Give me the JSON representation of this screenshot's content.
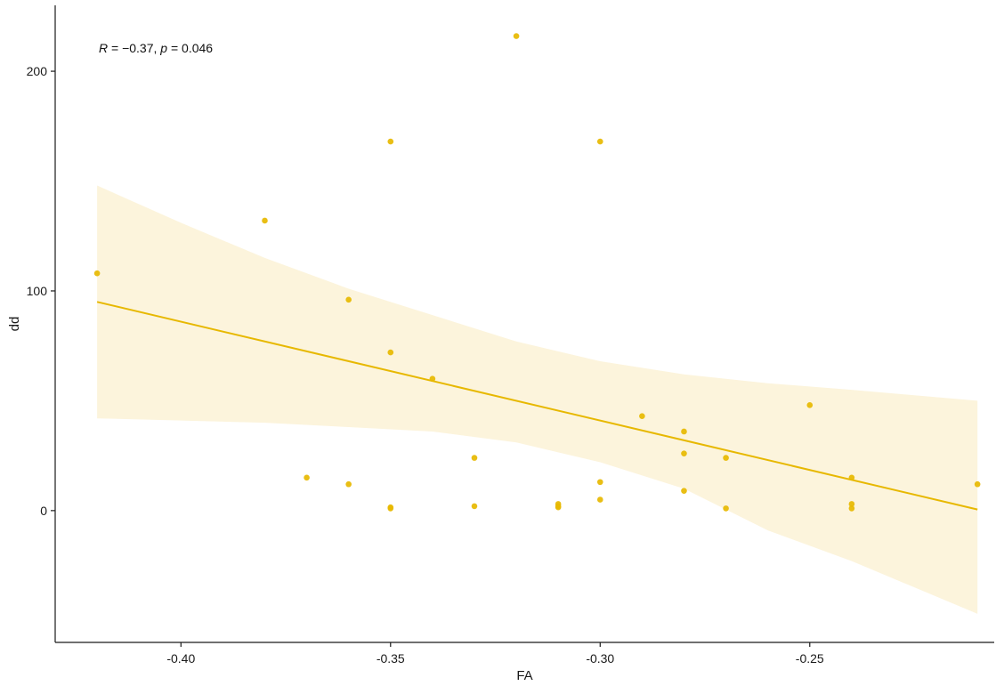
{
  "chart_data": {
    "type": "scatter",
    "title": "",
    "xlabel": "FA",
    "ylabel": "dd",
    "xlim": [
      -0.43,
      -0.206
    ],
    "ylim": [
      -60,
      230
    ],
    "x_ticks": [
      -0.4,
      -0.35,
      -0.3,
      -0.25
    ],
    "x_tick_labels": [
      "-0.40",
      "-0.35",
      "-0.30",
      "-0.25"
    ],
    "y_ticks": [
      0,
      100,
      200
    ],
    "y_tick_labels": [
      "0",
      "100",
      "200"
    ],
    "grid": false,
    "legend": "none",
    "annotation": {
      "r_symbol": "R",
      "r_text": " = −0.37, ",
      "p_symbol": "p",
      "p_text": " = 0.046"
    },
    "points": [
      {
        "x": -0.42,
        "y": 108
      },
      {
        "x": -0.38,
        "y": 132
      },
      {
        "x": -0.37,
        "y": 15
      },
      {
        "x": -0.36,
        "y": 96
      },
      {
        "x": -0.36,
        "y": 12
      },
      {
        "x": -0.35,
        "y": 168
      },
      {
        "x": -0.35,
        "y": 72
      },
      {
        "x": -0.35,
        "y": 1
      },
      {
        "x": -0.35,
        "y": 1.5
      },
      {
        "x": -0.34,
        "y": 60
      },
      {
        "x": -0.33,
        "y": 24
      },
      {
        "x": -0.33,
        "y": 2
      },
      {
        "x": -0.32,
        "y": 216
      },
      {
        "x": -0.31,
        "y": 3
      },
      {
        "x": -0.31,
        "y": 2
      },
      {
        "x": -0.31,
        "y": 1.5
      },
      {
        "x": -0.3,
        "y": 168
      },
      {
        "x": -0.3,
        "y": 13
      },
      {
        "x": -0.3,
        "y": 5
      },
      {
        "x": -0.29,
        "y": 43
      },
      {
        "x": -0.28,
        "y": 36
      },
      {
        "x": -0.28,
        "y": 26
      },
      {
        "x": -0.28,
        "y": 9
      },
      {
        "x": -0.27,
        "y": 24
      },
      {
        "x": -0.27,
        "y": 1
      },
      {
        "x": -0.25,
        "y": 48
      },
      {
        "x": -0.24,
        "y": 15
      },
      {
        "x": -0.24,
        "y": 3
      },
      {
        "x": -0.24,
        "y": 1
      },
      {
        "x": -0.21,
        "y": 12
      }
    ],
    "regression_line": {
      "x": [
        -0.42,
        -0.21
      ],
      "y": [
        95,
        0.5
      ]
    },
    "confidence_band": {
      "x": [
        -0.42,
        -0.4,
        -0.38,
        -0.36,
        -0.34,
        -0.32,
        -0.3,
        -0.28,
        -0.26,
        -0.24,
        -0.21
      ],
      "upper": [
        148,
        131,
        115,
        101,
        89,
        77,
        68,
        62,
        58,
        55,
        50
      ],
      "lower": [
        42,
        41,
        40,
        38,
        36,
        31,
        22,
        10,
        -9,
        -23,
        -47
      ]
    },
    "colors": {
      "points": "#E7B800",
      "line": "#E7B800",
      "band": "#FCF4DC",
      "axis": "#1a1a1a"
    }
  }
}
